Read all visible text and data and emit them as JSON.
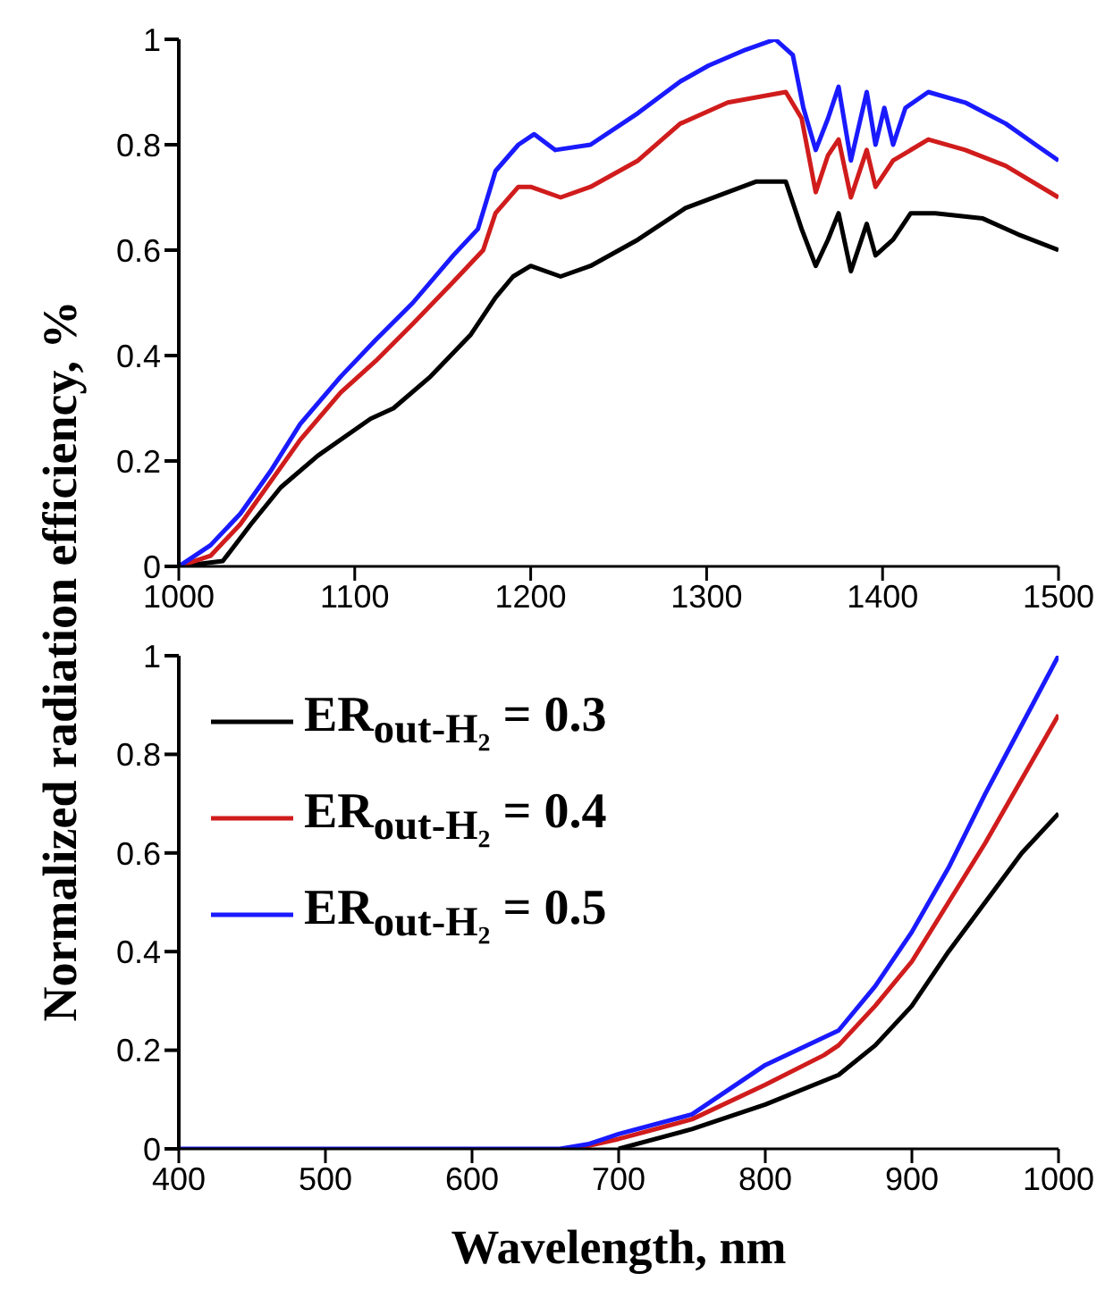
{
  "chart_data": [
    {
      "type": "line",
      "ylabel": "Normalized radiation efficiency, %",
      "xlim": [
        1000,
        1500
      ],
      "xticks": [
        1000,
        1100,
        1200,
        1300,
        1400,
        1500
      ],
      "ylim": [
        0,
        1
      ],
      "yticks": [
        0,
        0.2,
        0.4,
        0.6,
        0.8,
        1
      ],
      "grid": false,
      "legend": false,
      "line_style": "solid",
      "marker": "none",
      "series": [
        {
          "color": "#000000",
          "x": [
            1000,
            1025,
            1041,
            1058,
            1079,
            1109,
            1122,
            1143,
            1166,
            1180,
            1190,
            1200,
            1217,
            1234,
            1261,
            1288,
            1312,
            1328,
            1345,
            1354,
            1362,
            1369,
            1375,
            1382,
            1391,
            1396,
            1406,
            1416,
            1430,
            1457,
            1477,
            1500
          ],
          "values": [
            0,
            0.01,
            0.08,
            0.15,
            0.21,
            0.28,
            0.3,
            0.36,
            0.44,
            0.51,
            0.55,
            0.57,
            0.55,
            0.57,
            0.62,
            0.68,
            0.71,
            0.73,
            0.73,
            0.64,
            0.57,
            0.62,
            0.67,
            0.56,
            0.65,
            0.59,
            0.62,
            0.67,
            0.67,
            0.66,
            0.63,
            0.6
          ]
        },
        {
          "color": "#d01c1c",
          "x": [
            1000,
            1018,
            1035,
            1052,
            1069,
            1092,
            1112,
            1133,
            1156,
            1173,
            1180,
            1193,
            1200,
            1217,
            1234,
            1261,
            1285,
            1312,
            1345,
            1354,
            1362,
            1369,
            1375,
            1382,
            1391,
            1396,
            1406,
            1426,
            1447,
            1470,
            1500
          ],
          "values": [
            0,
            0.02,
            0.08,
            0.16,
            0.24,
            0.33,
            0.39,
            0.46,
            0.54,
            0.6,
            0.67,
            0.72,
            0.72,
            0.7,
            0.72,
            0.77,
            0.84,
            0.88,
            0.9,
            0.85,
            0.71,
            0.78,
            0.81,
            0.7,
            0.79,
            0.72,
            0.77,
            0.81,
            0.79,
            0.76,
            0.7
          ]
        },
        {
          "color": "#1a1aff",
          "x": [
            1000,
            1018,
            1035,
            1052,
            1069,
            1092,
            1112,
            1133,
            1156,
            1170,
            1180,
            1193,
            1202,
            1214,
            1234,
            1261,
            1285,
            1301,
            1322,
            1339,
            1349,
            1355,
            1362,
            1369,
            1375,
            1382,
            1391,
            1396,
            1401,
            1406,
            1413,
            1426,
            1447,
            1470,
            1487,
            1500
          ],
          "values": [
            0,
            0.04,
            0.1,
            0.18,
            0.27,
            0.36,
            0.43,
            0.5,
            0.59,
            0.64,
            0.75,
            0.8,
            0.82,
            0.79,
            0.8,
            0.86,
            0.92,
            0.95,
            0.98,
            1,
            0.97,
            0.87,
            0.79,
            0.85,
            0.91,
            0.77,
            0.9,
            0.8,
            0.87,
            0.8,
            0.87,
            0.9,
            0.88,
            0.84,
            0.8,
            0.77
          ]
        }
      ]
    },
    {
      "type": "line",
      "xlabel": "Wavelength, nm",
      "xlim": [
        400,
        1000
      ],
      "xticks": [
        400,
        500,
        600,
        700,
        800,
        900,
        1000
      ],
      "ylim": [
        0,
        1
      ],
      "yticks": [
        0,
        0.2,
        0.4,
        0.6,
        0.8,
        1
      ],
      "grid": false,
      "legend": "top left",
      "line_style": "solid",
      "marker": "none",
      "series": [
        {
          "name": "ER$_{out-H₂}$ = 0.3",
          "color": "#000000",
          "x": [
            700,
            750,
            800,
            850,
            875,
            900,
            925,
            950,
            975,
            1000
          ],
          "values": [
            0,
            0.04,
            0.09,
            0.15,
            0.21,
            0.29,
            0.4,
            0.5,
            0.6,
            0.68
          ]
        },
        {
          "name": "ER$_{out-H₂}$ = 0.4",
          "color": "#d01c1c",
          "x": [
            670,
            700,
            750,
            800,
            840,
            850,
            875,
            900,
            925,
            950,
            975,
            1000
          ],
          "values": [
            0,
            0.02,
            0.06,
            0.13,
            0.19,
            0.21,
            0.29,
            0.38,
            0.5,
            0.62,
            0.75,
            0.88
          ]
        },
        {
          "name": "ER$_{out-H₂}$ = 0.5",
          "color": "#1a1aff",
          "x": [
            400,
            500,
            600,
            660,
            680,
            700,
            750,
            800,
            850,
            875,
            900,
            925,
            950,
            975,
            1000
          ],
          "values": [
            0,
            0,
            0,
            0,
            0.01,
            0.03,
            0.07,
            0.17,
            0.24,
            0.33,
            0.44,
            0.57,
            0.72,
            0.86,
            1
          ]
        }
      ]
    }
  ]
}
